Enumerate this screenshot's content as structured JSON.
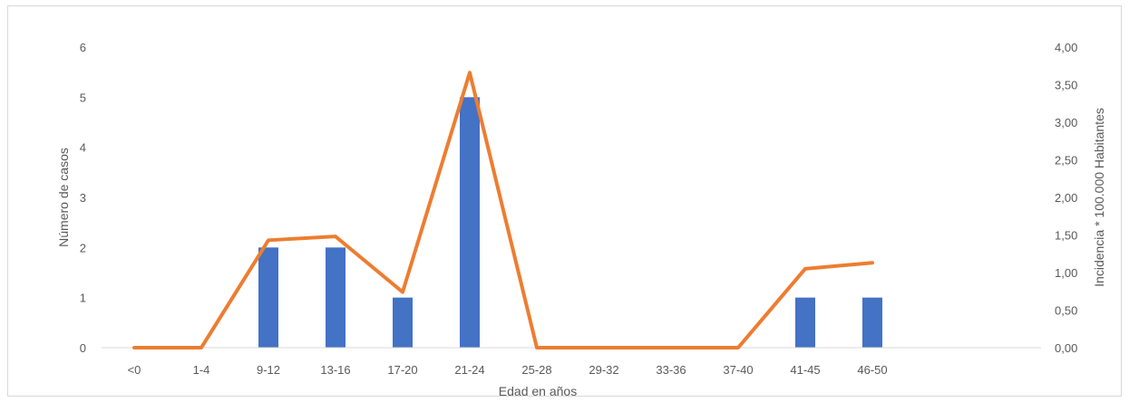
{
  "chart_data": {
    "type": "bar+line",
    "title": "",
    "xlabel": "Edad en años",
    "ylabel": "Número de casos",
    "y2label": "Incidencia * 100.000 Habitantes",
    "categories": [
      "<0",
      "1-4",
      "9-12",
      "13-16",
      "17-20",
      "21-24",
      "25-28",
      "29-32",
      "33-36",
      "37-40",
      "41-45",
      "46-50"
    ],
    "ylim": [
      0,
      6
    ],
    "y2lim": [
      0,
      4
    ],
    "yticks": [
      "0",
      "1",
      "2",
      "3",
      "4",
      "5",
      "6"
    ],
    "y2ticks": [
      "0,00",
      "0,50",
      "1,00",
      "1,50",
      "2,00",
      "2,50",
      "3,00",
      "3,50",
      "4,00"
    ],
    "series": [
      {
        "type": "bar",
        "axis": "left",
        "color": "#4472C4",
        "values": [
          0,
          0,
          2,
          2,
          1,
          5,
          0,
          0,
          0,
          0,
          1,
          1
        ]
      },
      {
        "type": "line",
        "axis": "right",
        "color": "#ED7D31",
        "values": [
          0,
          0,
          1.43,
          1.48,
          0.74,
          3.66,
          0,
          0,
          0,
          0,
          1.05,
          1.13
        ]
      }
    ],
    "grid": false,
    "legend": "none"
  }
}
